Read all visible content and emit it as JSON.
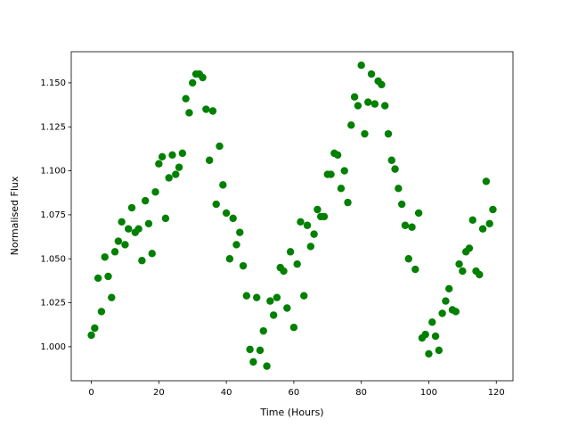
{
  "chart_data": {
    "type": "scatter",
    "x_label": "Time (Hours)",
    "y_label": "Normalised Flux",
    "color": "#008000",
    "x": [
      0,
      1,
      2,
      3,
      4,
      5,
      6,
      7,
      8,
      9,
      10,
      11,
      12,
      13,
      14,
      15,
      16,
      17,
      18,
      19,
      20,
      21,
      22,
      23,
      24,
      25,
      26,
      27,
      28,
      29,
      30,
      31,
      32,
      33,
      34,
      35,
      36,
      37,
      38,
      39,
      40,
      41,
      42,
      43,
      44,
      45,
      46,
      47,
      48,
      49,
      50,
      51,
      52,
      53,
      54,
      55,
      56,
      57,
      58,
      59,
      60,
      61,
      62,
      63,
      64,
      65,
      66,
      67,
      68,
      69,
      70,
      71,
      72,
      73,
      74,
      75,
      76,
      77,
      78,
      79,
      80,
      81,
      82,
      83,
      84,
      85,
      86,
      87,
      88,
      89,
      90,
      91,
      92,
      93,
      94,
      95,
      96,
      97,
      98,
      99,
      100,
      101,
      102,
      103,
      104,
      105,
      106,
      107,
      108,
      109,
      110,
      111,
      112,
      113,
      114,
      115,
      116,
      117,
      118,
      119
    ],
    "values": [
      1.0066,
      1.0106,
      1.039,
      1.02,
      1.051,
      1.04,
      1.028,
      1.054,
      1.06,
      1.071,
      1.058,
      1.067,
      1.079,
      1.065,
      1.067,
      1.049,
      1.083,
      1.07,
      1.053,
      1.088,
      1.104,
      1.108,
      1.073,
      1.096,
      1.109,
      1.098,
      1.102,
      1.11,
      1.141,
      1.133,
      1.15,
      1.155,
      1.155,
      1.153,
      1.135,
      1.106,
      1.134,
      1.081,
      1.114,
      1.092,
      1.076,
      1.05,
      1.073,
      1.058,
      1.065,
      1.046,
      1.029,
      0.9985,
      0.9914,
      1.028,
      0.998,
      1.009,
      0.989,
      1.026,
      1.018,
      1.028,
      1.045,
      1.043,
      1.022,
      1.054,
      1.011,
      1.047,
      1.071,
      1.029,
      1.069,
      1.057,
      1.064,
      1.078,
      1.074,
      1.074,
      1.098,
      1.098,
      1.11,
      1.109,
      1.09,
      1.1,
      1.082,
      1.126,
      1.142,
      1.137,
      1.16,
      1.121,
      1.139,
      1.155,
      1.138,
      1.151,
      1.149,
      1.137,
      1.121,
      1.106,
      1.101,
      1.09,
      1.081,
      1.069,
      1.05,
      1.068,
      1.044,
      1.076,
      1.005,
      1.007,
      0.996,
      1.014,
      1.006,
      0.998,
      1.019,
      1.026,
      1.033,
      1.021,
      1.02,
      1.047,
      1.043,
      1.054,
      1.056,
      1.072,
      1.043,
      1.041,
      1.067,
      1.094,
      1.07,
      1.078
    ],
    "xlim": [
      -5.95,
      124.95
    ],
    "ylim": [
      0.9807,
      1.1677
    ],
    "xticks": [
      0,
      20,
      40,
      60,
      80,
      100,
      120
    ],
    "yticks": [
      {
        "value": 1.0,
        "label": "1.000"
      },
      {
        "value": 1.025,
        "label": "1.025"
      },
      {
        "value": 1.05,
        "label": "1.050"
      },
      {
        "value": 1.075,
        "label": "1.075"
      },
      {
        "value": 1.1,
        "label": "1.100"
      },
      {
        "value": 1.125,
        "label": "1.125"
      },
      {
        "value": 1.15,
        "label": "1.150"
      }
    ],
    "grid": false
  }
}
